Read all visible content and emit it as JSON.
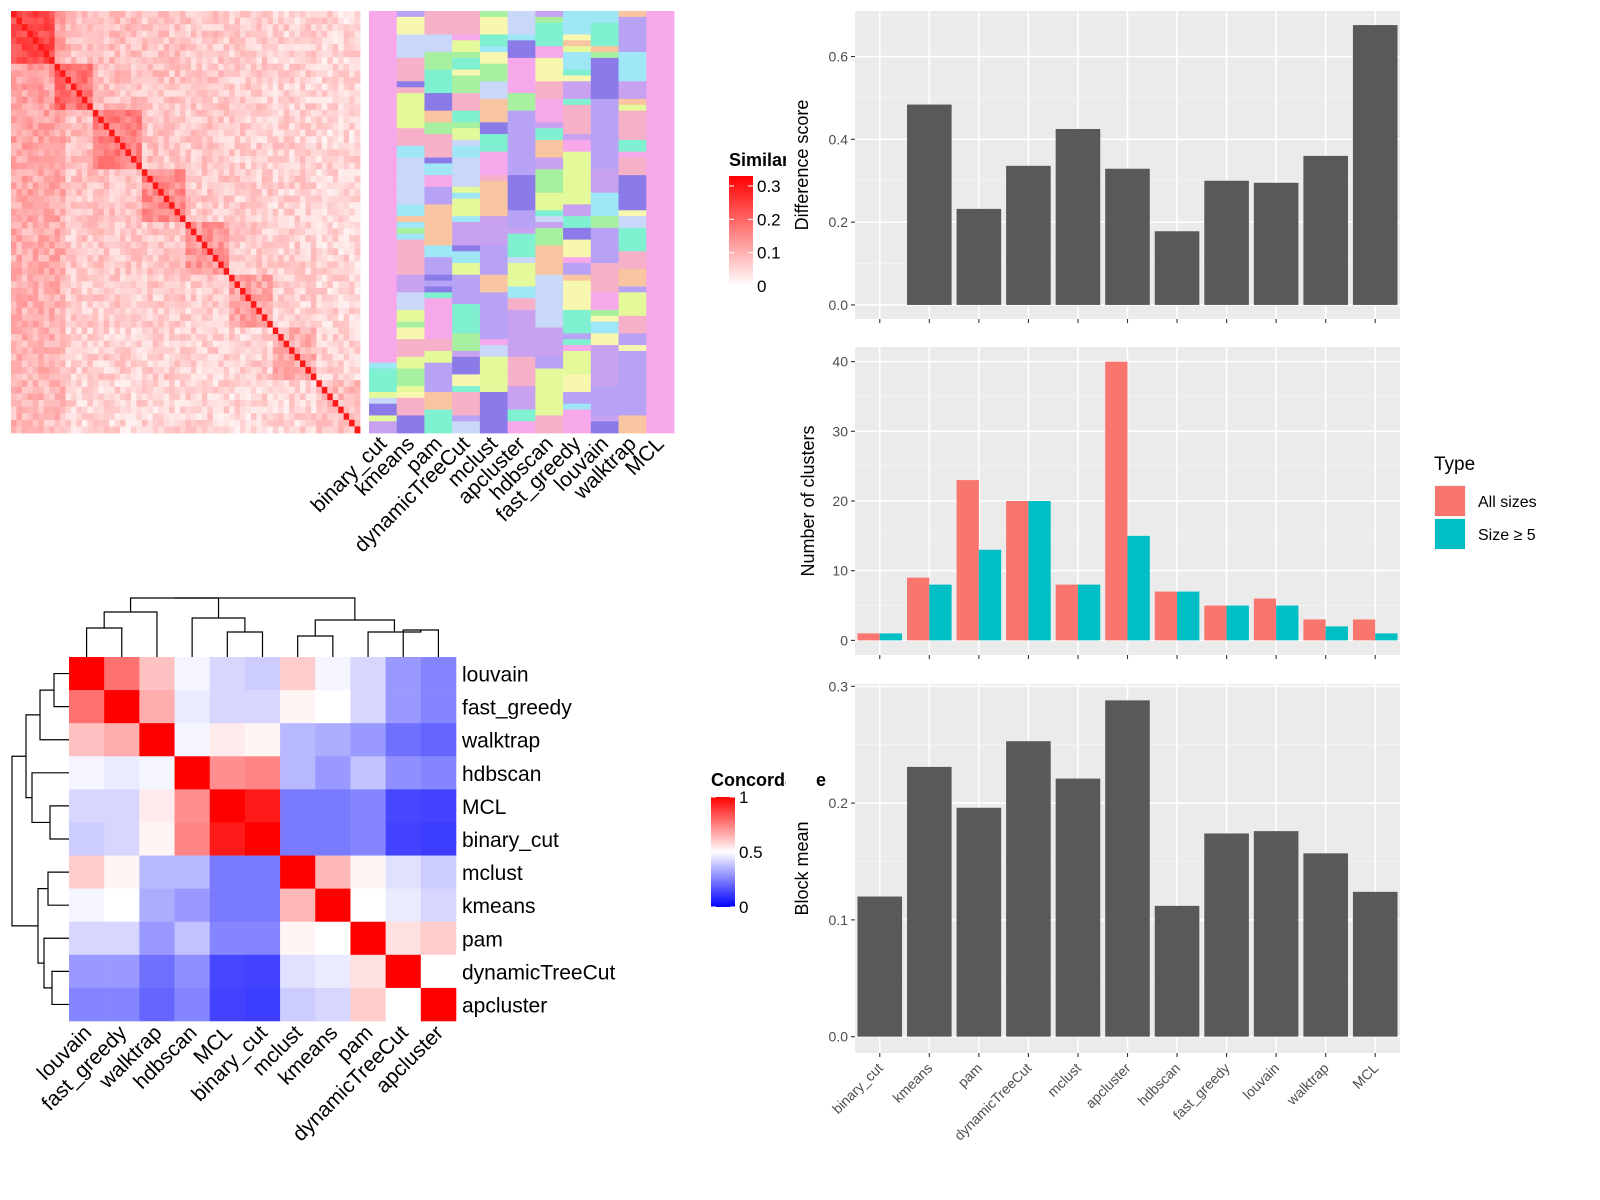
{
  "methods_order": [
    "binary_cut",
    "kmeans",
    "pam",
    "dynamicTreeCut",
    "mclust",
    "apcluster",
    "hdbscan",
    "fast_greedy",
    "louvain",
    "walktrap",
    "MCL"
  ],
  "concordance_order": [
    "louvain",
    "fast_greedy",
    "walktrap",
    "hdbscan",
    "MCL",
    "binary_cut",
    "mclust",
    "kmeans",
    "pam",
    "dynamicTreeCut",
    "apcluster"
  ],
  "chart_data": [
    {
      "type": "heatmap",
      "name": "similarity-heatmap",
      "legend_title": "Similarity",
      "legend_ticks": [
        "0",
        "0.1",
        "0.2",
        "0.3"
      ],
      "legend_range": [
        0,
        0.33
      ],
      "colors": {
        "low": "#ffffff",
        "high": "#ff0000"
      }
    },
    {
      "type": "heatmap",
      "name": "cluster-assignment-heatmap",
      "columns": [
        "binary_cut",
        "kmeans",
        "pam",
        "dynamicTreeCut",
        "mclust",
        "apcluster",
        "hdbscan",
        "fast_greedy",
        "louvain",
        "walktrap",
        "MCL"
      ]
    },
    {
      "type": "heatmap",
      "name": "concordance-heatmap",
      "legend_title": "Concordance",
      "legend_ticks": [
        "0",
        "0.5",
        "1"
      ],
      "rows": [
        "louvain",
        "fast_greedy",
        "walktrap",
        "hdbscan",
        "MCL",
        "binary_cut",
        "mclust",
        "kmeans",
        "pam",
        "dynamicTreeCut",
        "apcluster"
      ],
      "columns": [
        "louvain",
        "fast_greedy",
        "walktrap",
        "hdbscan",
        "MCL",
        "binary_cut",
        "mclust",
        "kmeans",
        "pam",
        "dynamicTreeCut",
        "apcluster"
      ],
      "values": [
        [
          1.0,
          0.78,
          0.62,
          0.48,
          0.42,
          0.4,
          0.6,
          0.48,
          0.42,
          0.3,
          0.26
        ],
        [
          0.78,
          1.0,
          0.66,
          0.46,
          0.42,
          0.42,
          0.52,
          0.5,
          0.42,
          0.3,
          0.26
        ],
        [
          0.62,
          0.66,
          1.0,
          0.48,
          0.54,
          0.52,
          0.36,
          0.34,
          0.3,
          0.22,
          0.2
        ],
        [
          0.48,
          0.46,
          0.48,
          1.0,
          0.72,
          0.74,
          0.36,
          0.3,
          0.38,
          0.28,
          0.26
        ],
        [
          0.42,
          0.42,
          0.54,
          0.72,
          1.0,
          0.95,
          0.24,
          0.24,
          0.26,
          0.14,
          0.13
        ],
        [
          0.4,
          0.42,
          0.52,
          0.74,
          0.95,
          1.0,
          0.24,
          0.24,
          0.26,
          0.13,
          0.12
        ],
        [
          0.6,
          0.52,
          0.36,
          0.36,
          0.24,
          0.24,
          1.0,
          0.64,
          0.52,
          0.44,
          0.4
        ],
        [
          0.48,
          0.5,
          0.34,
          0.3,
          0.24,
          0.24,
          0.64,
          1.0,
          0.5,
          0.46,
          0.42
        ],
        [
          0.42,
          0.42,
          0.3,
          0.38,
          0.26,
          0.26,
          0.52,
          0.5,
          1.0,
          0.56,
          0.6
        ],
        [
          0.3,
          0.3,
          0.22,
          0.28,
          0.14,
          0.13,
          0.44,
          0.46,
          0.56,
          1.0,
          0.5
        ],
        [
          0.26,
          0.26,
          0.2,
          0.26,
          0.13,
          0.12,
          0.4,
          0.42,
          0.6,
          0.5,
          1.0
        ]
      ]
    },
    {
      "type": "bar",
      "name": "difference-score",
      "categories": [
        "binary_cut",
        "kmeans",
        "pam",
        "dynamicTreeCut",
        "mclust",
        "apcluster",
        "hdbscan",
        "fast_greedy",
        "louvain",
        "walktrap",
        "MCL"
      ],
      "values": [
        0.0,
        0.484,
        0.232,
        0.336,
        0.425,
        0.329,
        0.178,
        0.3,
        0.295,
        0.36,
        0.676
      ],
      "ylabel": "Difference score",
      "ylim": [
        -0.034,
        0.71
      ],
      "yticks": [
        "0.0",
        "0.2",
        "0.4",
        "0.6"
      ],
      "ytick_values": [
        0,
        0.2,
        0.4,
        0.6
      ]
    },
    {
      "type": "bar",
      "name": "number-of-clusters",
      "categories": [
        "binary_cut",
        "kmeans",
        "pam",
        "dynamicTreeCut",
        "mclust",
        "apcluster",
        "hdbscan",
        "fast_greedy",
        "louvain",
        "walktrap",
        "MCL"
      ],
      "series": [
        {
          "name": "All sizes",
          "color": "#F8766D",
          "values": [
            1,
            9,
            23,
            20,
            8,
            40,
            7,
            5,
            6,
            3,
            3
          ]
        },
        {
          "name": "Size ≥ 5",
          "color": "#00BFC4",
          "values": [
            1,
            8,
            13,
            20,
            8,
            15,
            7,
            5,
            5,
            2,
            1
          ]
        }
      ],
      "ylabel": "Number of clusters",
      "ylim": [
        -2.1,
        42.1
      ],
      "yticks": [
        "0",
        "10",
        "20",
        "30",
        "40"
      ],
      "ytick_values": [
        0,
        10,
        20,
        30,
        40
      ],
      "legend_title": "Type",
      "legend_position": "right"
    },
    {
      "type": "bar",
      "name": "block-mean",
      "categories": [
        "binary_cut",
        "kmeans",
        "pam",
        "dynamicTreeCut",
        "mclust",
        "apcluster",
        "hdbscan",
        "fast_greedy",
        "louvain",
        "walktrap",
        "MCL"
      ],
      "values": [
        0.12,
        0.231,
        0.196,
        0.253,
        0.221,
        0.288,
        0.112,
        0.174,
        0.176,
        0.157,
        0.124
      ],
      "ylabel": "Block mean",
      "ylim": [
        -0.014,
        0.302
      ],
      "yticks": [
        "0.0",
        "0.1",
        "0.2",
        "0.3"
      ],
      "ytick_values": [
        0,
        0.1,
        0.2,
        0.3
      ]
    }
  ]
}
